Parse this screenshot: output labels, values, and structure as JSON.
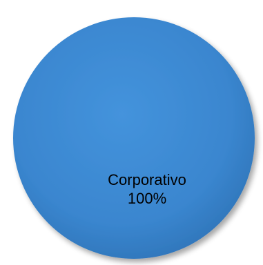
{
  "chart_data": {
    "type": "pie",
    "categories": [
      "Corporativo"
    ],
    "values": [
      100
    ],
    "labels": [
      {
        "category": "Corporativo",
        "percent": "100%"
      }
    ],
    "colors": [
      "#3a86cf"
    ],
    "title": "",
    "legend": "none"
  }
}
